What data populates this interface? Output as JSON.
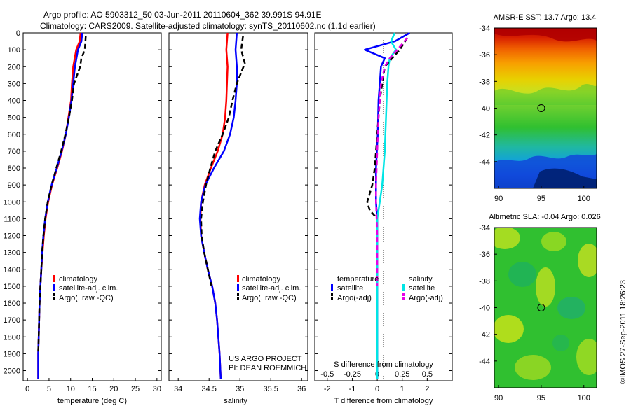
{
  "header": {
    "title_line1": "Argo profile: AO 5903312_50 03-Jun-2011 20110604_362 39.991S 94.91E",
    "title_line2": "Climatology: CARS2009. Satellite-adjusted climatology: synTS_20110602.nc (1.1d earlier)"
  },
  "credits": {
    "project": "US ARGO PROJECT",
    "pi": "PI: DEAN ROEMMICH",
    "imos_stamp": "©IMOS 27-Sep-2011 18:26:23"
  },
  "colors": {
    "climatology": "#ff0000",
    "satellite": "#0000ff",
    "argo": "#000000",
    "satellite_salinity": "#00e5e5",
    "argo_salinity_adj": "#e600e6"
  },
  "chart_data": [
    {
      "id": "temperature",
      "type": "line",
      "xlabel": "temperature (deg C)",
      "ylabel": "",
      "xlim": [
        -1,
        31
      ],
      "ylim": [
        2060,
        0
      ],
      "xticks": [
        0,
        5,
        10,
        15,
        20,
        25,
        30
      ],
      "yticks": [
        0,
        100,
        200,
        300,
        400,
        500,
        600,
        700,
        800,
        900,
        1000,
        1100,
        1200,
        1300,
        1400,
        1500,
        1600,
        1700,
        1800,
        1900,
        2000
      ],
      "legend": [
        "climatology",
        "satellite-adj. clim.",
        "Argo(..raw -QC)"
      ],
      "series": [
        {
          "name": "climatology",
          "color": "#ff0000",
          "style": "solid",
          "x": [
            12.3,
            12.1,
            11.3,
            10.6,
            10.3,
            10.1,
            9.5,
            8.9,
            8.0,
            6.9,
            5.7,
            4.8,
            4.2,
            3.8,
            3.5,
            3.2,
            3.0,
            2.8,
            2.7,
            2.6,
            2.5,
            2.5
          ],
          "y": [
            0,
            50,
            100,
            200,
            300,
            400,
            500,
            600,
            700,
            800,
            900,
            1000,
            1100,
            1200,
            1300,
            1400,
            1500,
            1600,
            1700,
            1800,
            1900,
            2050
          ]
        },
        {
          "name": "satellite-adj. clim.",
          "color": "#0000ff",
          "style": "solid",
          "x": [
            12.7,
            12.5,
            11.7,
            11.0,
            10.6,
            10.2,
            9.6,
            8.9,
            7.9,
            6.8,
            5.6,
            4.7,
            4.1,
            3.7,
            3.4,
            3.2,
            3.0,
            2.8,
            2.7,
            2.6,
            2.5,
            2.5
          ],
          "y": [
            0,
            50,
            100,
            200,
            300,
            400,
            500,
            600,
            700,
            800,
            900,
            1000,
            1100,
            1200,
            1300,
            1400,
            1500,
            1600,
            1700,
            1800,
            1900,
            2050
          ]
        },
        {
          "name": "Argo(..raw -QC)",
          "color": "#000000",
          "style": "dashed",
          "x": [
            13.5,
            13.3,
            12.5,
            12.2,
            10.8,
            10.3,
            9.6,
            8.8,
            7.8,
            6.7,
            5.6,
            4.7,
            4.1,
            3.7,
            3.4,
            3.2,
            3.0,
            2.8,
            2.7,
            2.6,
            2.5
          ],
          "y": [
            20,
            100,
            150,
            200,
            300,
            400,
            500,
            600,
            700,
            800,
            900,
            1000,
            1100,
            1200,
            1300,
            1400,
            1500,
            1600,
            1700,
            1800,
            1900
          ]
        }
      ]
    },
    {
      "id": "salinity",
      "type": "line",
      "xlabel": "salinity",
      "ylabel": "",
      "xlim": [
        33.85,
        36.1
      ],
      "ylim": [
        2060,
        0
      ],
      "xticks": [
        34,
        34.5,
        35,
        35.5,
        36
      ],
      "yticks": [],
      "legend": [
        "climatology",
        "satellite-adj. clim.",
        "Argo(..raw -QC)"
      ],
      "series": [
        {
          "name": "climatology",
          "color": "#ff0000",
          "style": "solid",
          "x": [
            34.8,
            34.78,
            34.8,
            34.79,
            34.78,
            34.76,
            34.72,
            34.64,
            34.53,
            34.43,
            34.37,
            34.36,
            34.37,
            34.42,
            34.48,
            34.55,
            34.6,
            34.63,
            34.65,
            34.67,
            34.69
          ],
          "y": [
            0,
            100,
            200,
            300,
            400,
            500,
            600,
            700,
            800,
            900,
            1000,
            1100,
            1200,
            1300,
            1400,
            1500,
            1600,
            1700,
            1800,
            1900,
            2050
          ]
        },
        {
          "name": "satellite-adj. clim.",
          "color": "#0000ff",
          "style": "solid",
          "x": [
            34.95,
            34.93,
            34.95,
            34.95,
            34.93,
            34.9,
            34.84,
            34.74,
            34.58,
            34.44,
            34.37,
            34.35,
            34.37,
            34.42,
            34.48,
            34.55,
            34.6,
            34.63,
            34.65,
            34.67,
            34.69
          ],
          "y": [
            0,
            100,
            200,
            300,
            400,
            500,
            600,
            700,
            800,
            900,
            1000,
            1100,
            1200,
            1300,
            1400,
            1500,
            1600,
            1700,
            1800,
            1900,
            2050
          ]
        },
        {
          "name": "Argo(..raw -QC)",
          "color": "#000000",
          "style": "dashed",
          "x": [
            35.05,
            35.02,
            35.08,
            34.95,
            34.88,
            34.82,
            34.72,
            34.6,
            34.52,
            34.45,
            34.4,
            34.37,
            34.38,
            34.42,
            34.48,
            34.54
          ],
          "y": [
            20,
            100,
            180,
            300,
            400,
            500,
            600,
            700,
            800,
            900,
            1000,
            1100,
            1200,
            1300,
            1400,
            1500
          ]
        }
      ]
    },
    {
      "id": "difference",
      "type": "line",
      "xlabel": "T difference from climatology",
      "xlabel_top": "S difference from climatology",
      "xlim": [
        -2.5,
        3
      ],
      "ylim": [
        2060,
        0
      ],
      "xticks": [
        -2,
        -1,
        0,
        1,
        2
      ],
      "xticks_s": [
        "-0.5",
        "-0.25",
        "0",
        "0.25",
        "0.5"
      ],
      "legend_headers": [
        "temperature",
        "salinity"
      ],
      "legend": [
        "satellite",
        "Argo(-adj)",
        "satellite",
        "Argo(-adj)"
      ],
      "series": [
        {
          "name": "temperature satellite",
          "color": "#0000ff",
          "style": "solid",
          "x": [
            1.3,
            0.7,
            -0.5,
            0.3,
            0.15,
            0.1,
            0.05,
            0.02,
            -0.05,
            -0.05,
            0.0,
            0.0,
            0.0,
            0.0,
            0.0,
            0.0,
            0.0,
            0.0,
            0.0
          ],
          "y": [
            0,
            50,
            100,
            150,
            200,
            300,
            400,
            600,
            800,
            1000,
            1100,
            1200,
            1300,
            1400,
            1500,
            1600,
            1700,
            1800,
            2050
          ]
        },
        {
          "name": "salinity satellite",
          "color": "#00e5e5",
          "style": "solid",
          "x": [
            0.7,
            0.55,
            0.75,
            0.5,
            0.45,
            0.4,
            0.35,
            0.3,
            0.25,
            0.2,
            0.1,
            0.0,
            0.0,
            0.0,
            0.0,
            0.0,
            0.0
          ],
          "y": [
            0,
            50,
            100,
            150,
            200,
            300,
            500,
            700,
            800,
            900,
            1000,
            1100,
            1300,
            1500,
            1700,
            1900,
            2050
          ]
        },
        {
          "name": "temperature Argo(-adj)",
          "color": "#000000",
          "style": "dashed",
          "x": [
            1.2,
            0.9,
            0.6,
            0.3,
            0.2,
            0.1,
            0.0,
            -0.05,
            -0.1,
            -0.2,
            -0.4,
            -0.3,
            0.0
          ],
          "y": [
            30,
            100,
            150,
            200,
            300,
            400,
            600,
            700,
            800,
            900,
            1000,
            1050,
            1100
          ]
        },
        {
          "name": "salinity Argo(-adj)",
          "color": "#e600e6",
          "style": "dashed",
          "x": [
            1.2,
            0.8,
            0.5,
            0.3,
            0.15,
            0.05,
            0.0,
            -0.05,
            -0.05,
            0.0,
            0.0,
            0.0
          ],
          "y": [
            30,
            100,
            150,
            200,
            300,
            500,
            700,
            900,
            1000,
            1200,
            1400,
            1500
          ]
        }
      ]
    },
    {
      "id": "sst_map",
      "type": "heatmap",
      "title": "AMSR-E SST: 13.7 Argo: 13.4",
      "xlim": [
        89.5,
        101.5
      ],
      "ylim": [
        -46,
        -34
      ],
      "xticks": [
        90,
        95,
        100
      ],
      "yticks": [
        -34,
        -36,
        -38,
        -40,
        -42,
        -44
      ],
      "marker": {
        "lon": 95,
        "lat": -40
      }
    },
    {
      "id": "sla_map",
      "type": "heatmap",
      "title": "Altimetric SLA: -0.04 Argo: 0.026",
      "xlim": [
        89.5,
        101.5
      ],
      "ylim": [
        -46,
        -34
      ],
      "xticks": [
        90,
        95,
        100
      ],
      "yticks": [
        -34,
        -36,
        -38,
        -40,
        -42,
        -44
      ],
      "marker": {
        "lon": 95,
        "lat": -40
      }
    }
  ]
}
